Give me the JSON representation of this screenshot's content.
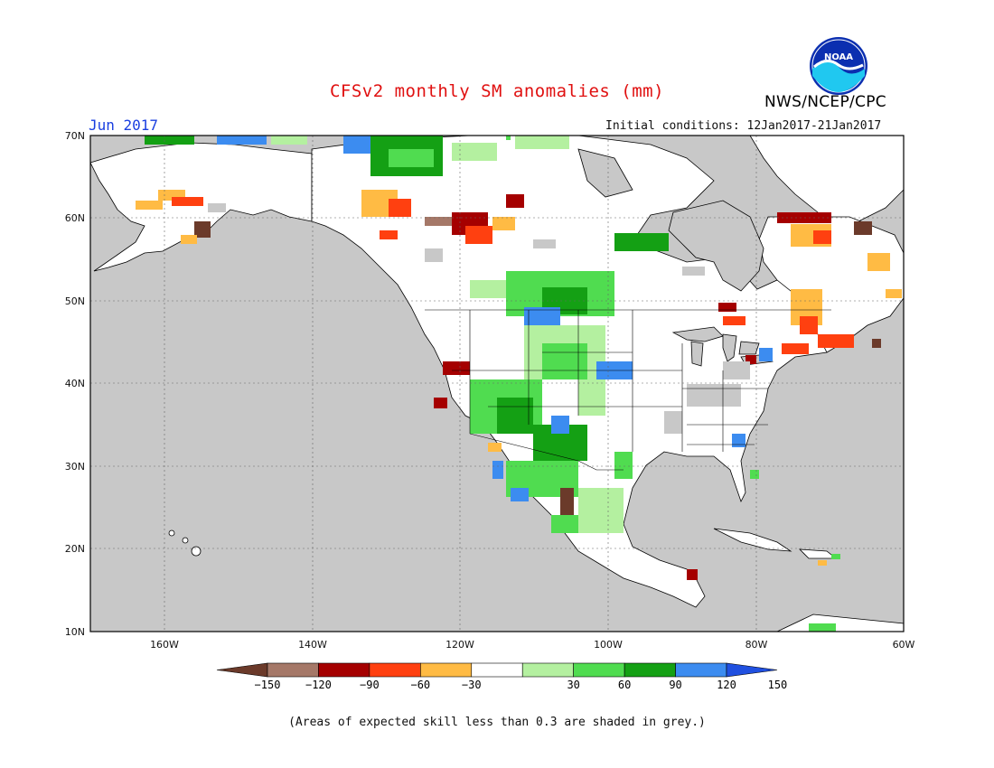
{
  "title": "CFSv2 monthly SM anomalies (mm)",
  "period": "Jun 2017",
  "initial_conditions": "Initial conditions: 12Jan2017-21Jan2017",
  "agency": "NWS/NCEP/CPC",
  "logo_text": "NOAA",
  "footnote": "(Areas of expected skill less than 0.3 are shaded in grey.)",
  "map": {
    "lon_range": [
      -172,
      -60
    ],
    "lat_range": [
      10,
      70
    ],
    "lat_labels": [
      "70N",
      "60N",
      "50N",
      "40N",
      "30N",
      "20N",
      "10N"
    ],
    "lon_labels": [
      "160W",
      "140W",
      "120W",
      "100W",
      "80W",
      "60W"
    ],
    "colors": {
      "ocean_grey": "#c8c8c8",
      "land_white": "#ffffff",
      "coast": "#000000"
    }
  },
  "colorbar": {
    "labels": [
      "-150",
      "-120",
      "-90",
      "-60",
      "-30",
      "30",
      "60",
      "90",
      "120",
      "150"
    ],
    "colors": [
      "#6b3a2a",
      "#a57868",
      "#a50000",
      "#ff4010",
      "#ffbb44",
      "#ffffff",
      "#b4f0a0",
      "#50dc50",
      "#14a014",
      "#3c8cf0",
      "#2050e0"
    ]
  }
}
